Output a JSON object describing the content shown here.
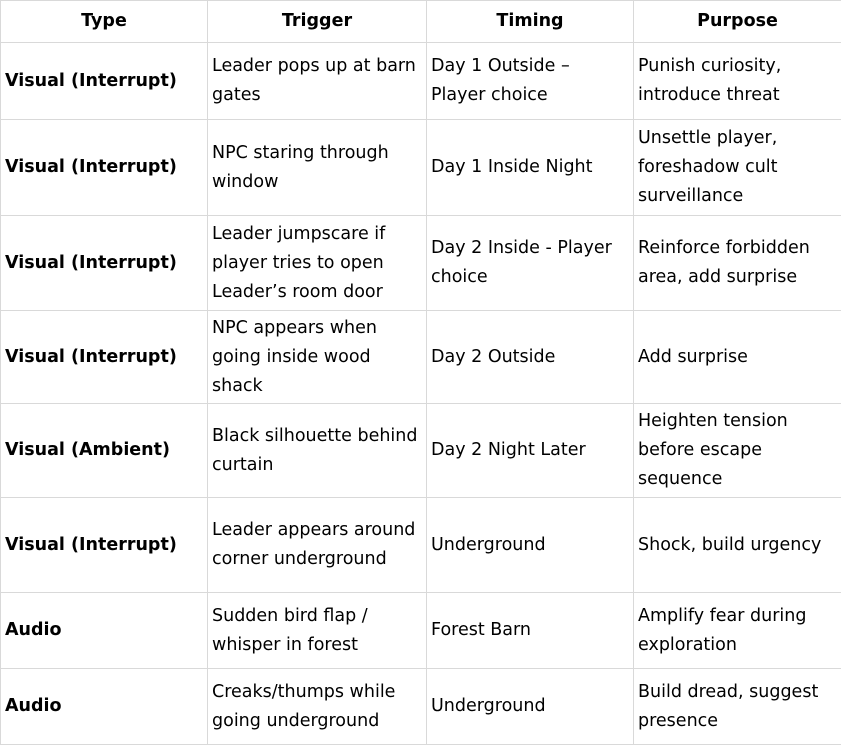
{
  "headers": [
    "Type",
    "Trigger",
    "Timing",
    "Purpose"
  ],
  "rows": [
    {
      "type": "Visual (Interrupt)",
      "trigger": "Leader pops up at barn gates",
      "timing": "Day 1 Outside – Player choice",
      "purpose": "Punish curiosity, introduce threat"
    },
    {
      "type": "Visual (Interrupt)",
      "trigger": "NPC staring through window",
      "timing": "Day 1 Inside Night",
      "purpose": "Unsettle player, foreshadow cult surveillance"
    },
    {
      "type": "Visual (Interrupt)",
      "trigger": "Leader jumpscare if player tries to open Leader’s room door",
      "timing": "Day 2 Inside - Player choice",
      "purpose": "Reinforce forbidden area, add surprise"
    },
    {
      "type": "Visual (Interrupt)",
      "trigger": "NPC appears when going inside wood shack",
      "timing": "Day 2 Outside",
      "purpose": "Add surprise"
    },
    {
      "type": "Visual (Ambient)",
      "trigger": "Black silhouette behind curtain",
      "timing": "Day 2 Night Later",
      "purpose": "Heighten tension before escape sequence"
    },
    {
      "type": "Visual (Interrupt)",
      "trigger": "Leader appears around corner underground",
      "timing": "Underground",
      "purpose": "Shock, build urgency"
    },
    {
      "type": "Audio",
      "trigger": "Sudden bird flap / whisper in forest",
      "timing": "Forest Barn",
      "purpose": "Amplify fear during exploration"
    },
    {
      "type": "Audio",
      "trigger": "Creaks/thumps while going underground",
      "timing": "Underground",
      "purpose": "Build dread, suggest presence"
    }
  ]
}
